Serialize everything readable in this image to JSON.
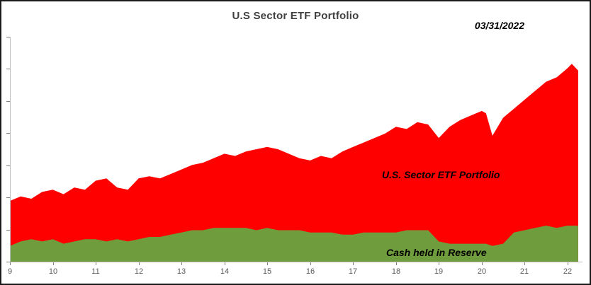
{
  "header": {
    "title": "U.S Sector ETF Portfolio",
    "date_annotation": "03/31/2022"
  },
  "annotations": {
    "portfolio_label": "U.S. Sector ETF Portfolio",
    "cash_label": "Cash held in Reserve"
  },
  "colors": {
    "portfolio_area": "#FE0000",
    "cash_area": "#6F9C3D",
    "title_text": "#3F3F3F",
    "axis_line": "#BFBFBF",
    "tick_mark": "#7F7F7F",
    "tick_text": "#595959"
  },
  "chart_data": {
    "type": "area",
    "title": "U.S Sector ETF Portfolio",
    "xlabel": "",
    "ylabel": "",
    "x_ticks": [
      9,
      10,
      11,
      12,
      13,
      14,
      15,
      16,
      17,
      18,
      19,
      20,
      21,
      22
    ],
    "xrange": [
      9,
      22.35
    ],
    "ylim": [
      0,
      100
    ],
    "y_axis_labels": "none (tick marks only)",
    "y_tick_count": 8,
    "grid": false,
    "legend": "in-plot text annotations",
    "stacked": false,
    "x": [
      9,
      9.25,
      9.5,
      9.75,
      10,
      10.25,
      10.5,
      10.75,
      11,
      11.25,
      11.5,
      11.75,
      12,
      12.25,
      12.5,
      12.75,
      13,
      13.25,
      13.5,
      13.75,
      14,
      14.25,
      14.5,
      14.75,
      15,
      15.25,
      15.5,
      15.75,
      16,
      16.25,
      16.5,
      16.75,
      17,
      17.25,
      17.5,
      17.75,
      18,
      18.25,
      18.5,
      18.75,
      19,
      19.25,
      19.5,
      19.75,
      20,
      20.1,
      20.25,
      20.5,
      20.75,
      21,
      21.25,
      21.5,
      21.75,
      22,
      22.1,
      22.25
    ],
    "series": [
      {
        "name": "U.S. Sector ETF Portfolio",
        "color": "#FE0000",
        "values": [
          27,
          29,
          28,
          31,
          32,
          30,
          33,
          32,
          36,
          37,
          33,
          32,
          37,
          38,
          37,
          39,
          41,
          43,
          44,
          46,
          48,
          47,
          49,
          50,
          51,
          50,
          48,
          46,
          45,
          47,
          46,
          49,
          51,
          53,
          55,
          57,
          60,
          59,
          62,
          61,
          55,
          60,
          63,
          65,
          67,
          66,
          56,
          64,
          68,
          72,
          76,
          80,
          82,
          86,
          88,
          85
        ]
      },
      {
        "name": "Cash held in Reserve",
        "color": "#6F9C3D",
        "values": [
          7,
          9,
          10,
          9,
          10,
          8,
          9,
          10,
          10,
          9,
          10,
          9,
          10,
          11,
          11,
          12,
          13,
          14,
          14,
          15,
          15,
          15,
          15,
          14,
          15,
          14,
          14,
          14,
          13,
          13,
          13,
          12,
          12,
          13,
          13,
          13,
          13,
          14,
          14,
          14,
          9,
          8,
          8,
          8,
          8,
          8,
          7,
          8,
          13,
          14,
          15,
          16,
          15,
          16,
          16,
          16
        ]
      }
    ]
  }
}
